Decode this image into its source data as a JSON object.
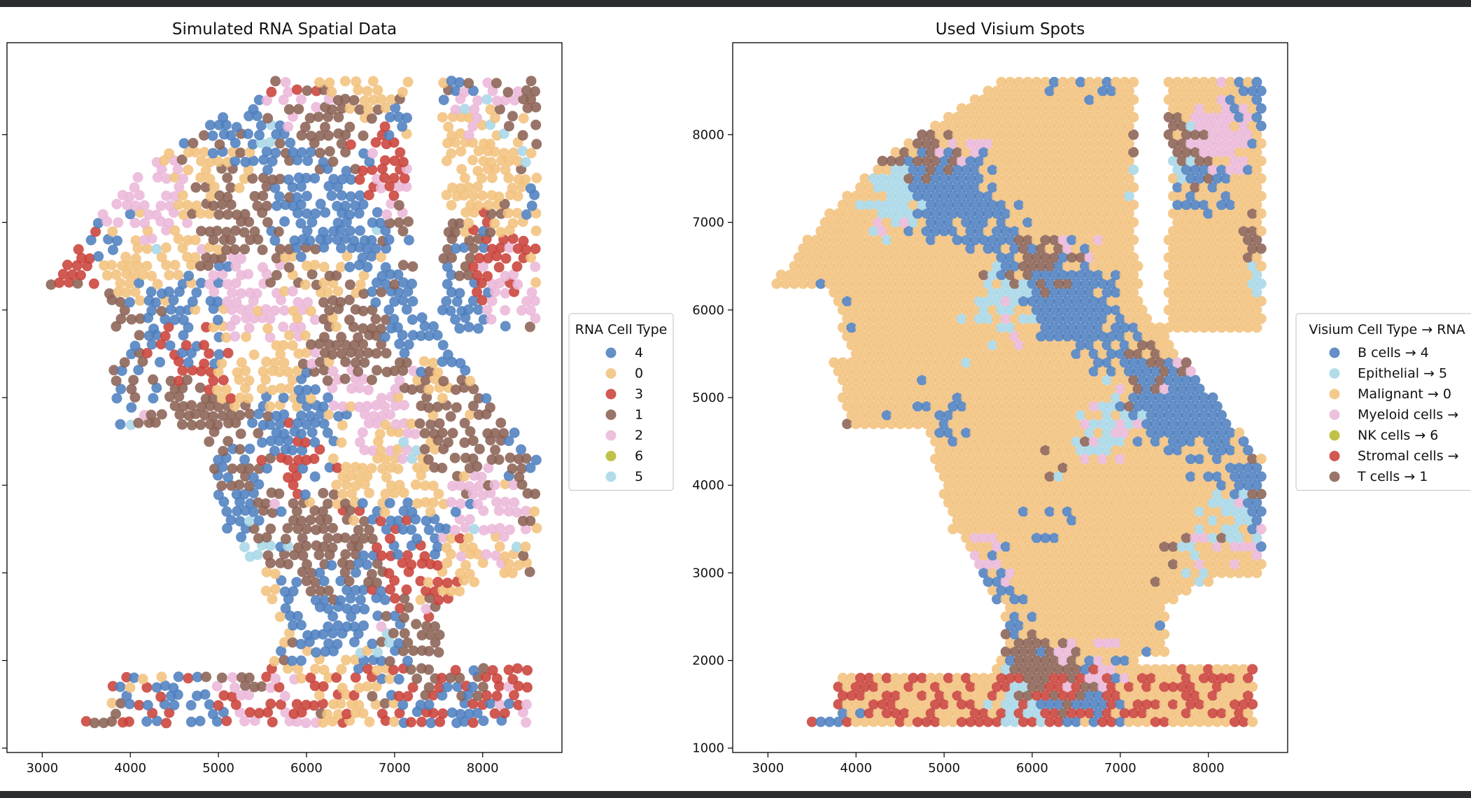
{
  "chart_data": [
    {
      "type": "scatter",
      "title": "Simulated RNA Spatial Data",
      "xlabel": "",
      "ylabel": "",
      "xlim": [
        2600,
        8900
      ],
      "ylim": [
        950,
        9050
      ],
      "xticks": [
        3000,
        4000,
        5000,
        6000,
        7000,
        8000
      ],
      "yticks": [],
      "legend": {
        "title": "RNA Cell Type",
        "placement": "right-outside-center",
        "entries": [
          {
            "label": "4",
            "color": "#4f7fbf"
          },
          {
            "label": "0",
            "color": "#f2c17d"
          },
          {
            "label": "3",
            "color": "#c9423a"
          },
          {
            "label": "1",
            "color": "#8b6254"
          },
          {
            "label": "2",
            "color": "#ebb7d8"
          },
          {
            "label": "6",
            "color": "#b7b92e"
          },
          {
            "label": "5",
            "color": "#a9d7e7"
          }
        ]
      },
      "categories": [
        "4",
        "0",
        "3",
        "1",
        "2",
        "6",
        "5"
      ],
      "colors": [
        "#4f7fbf",
        "#f2c17d",
        "#c9423a",
        "#8b6254",
        "#ebb7d8",
        "#b7b92e",
        "#a9d7e7"
      ],
      "weights": [
        0.22,
        0.2,
        0.11,
        0.22,
        0.13,
        0.04,
        0.08
      ],
      "spot_fill": "sparse",
      "grid": false
    },
    {
      "type": "scatter",
      "title": "Used Visium Spots",
      "xlabel": "",
      "ylabel": "",
      "xlim": [
        2600,
        8900
      ],
      "ylim": [
        950,
        9050
      ],
      "xticks": [
        3000,
        4000,
        5000,
        6000,
        7000,
        8000
      ],
      "yticks": [
        1000,
        2000,
        3000,
        4000,
        5000,
        6000,
        7000,
        8000
      ],
      "legend": {
        "title": "Visium Cell Type → RNA",
        "placement": "right-outside-center",
        "entries": [
          {
            "label": "B cells → 4",
            "color": "#4f7fbf"
          },
          {
            "label": "Epithelial → 5",
            "color": "#a9d7e7"
          },
          {
            "label": "Malignant → 0",
            "color": "#f2c17d"
          },
          {
            "label": "Myeloid cells →",
            "color": "#ebb7d8"
          },
          {
            "label": "NK cells → 6",
            "color": "#b7b92e"
          },
          {
            "label": "Stromal cells →",
            "color": "#c9423a"
          },
          {
            "label": "T cells → 1",
            "color": "#8b6254"
          }
        ]
      },
      "categories": [
        "B cells → 4",
        "Epithelial → 5",
        "Malignant → 0",
        "Myeloid cells →",
        "NK cells → 6",
        "Stromal cells →",
        "T cells → 1"
      ],
      "colors": [
        "#4f7fbf",
        "#a9d7e7",
        "#f2c17d",
        "#ebb7d8",
        "#b7b92e",
        "#c9423a",
        "#8b6254"
      ],
      "weights": [
        0.2,
        0.1,
        0.42,
        0.1,
        0.03,
        0.05,
        0.1
      ],
      "spot_fill": "dense",
      "grid": false
    }
  ]
}
